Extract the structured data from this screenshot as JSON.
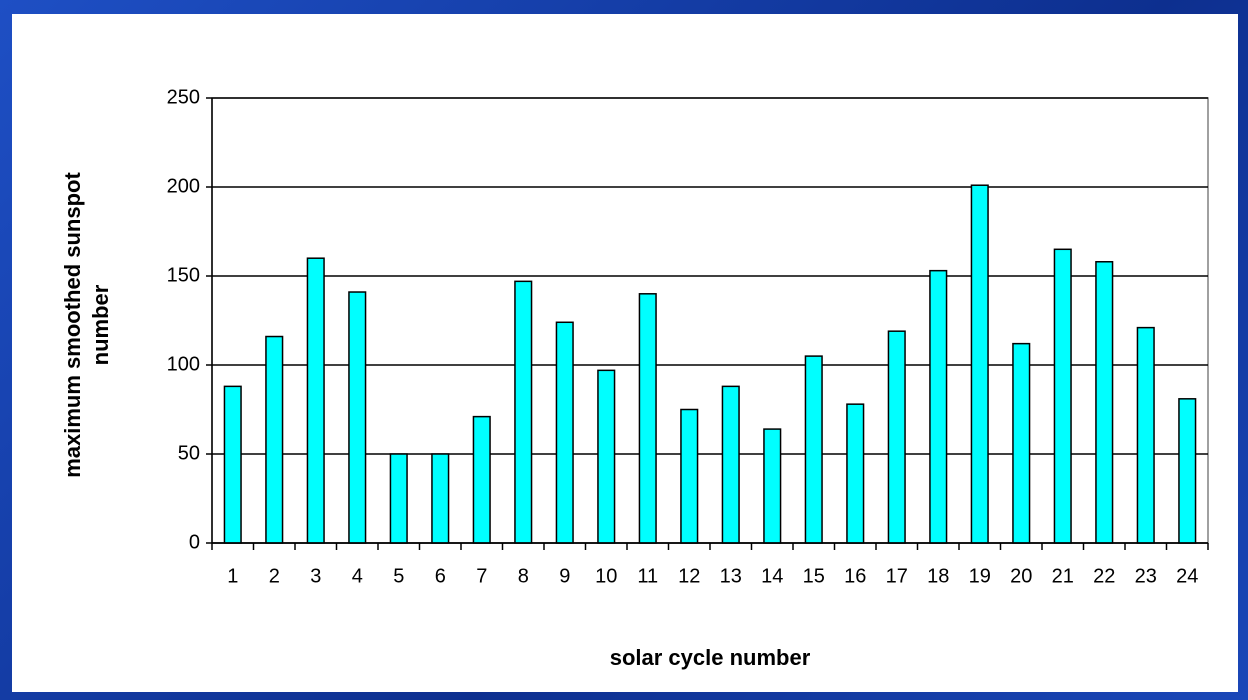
{
  "chart_data": {
    "type": "bar",
    "xlabel": "solar cycle number",
    "ylabel": "maximum smoothed sunspot number",
    "categories": [
      "1",
      "2",
      "3",
      "4",
      "5",
      "6",
      "7",
      "8",
      "9",
      "10",
      "11",
      "12",
      "13",
      "14",
      "15",
      "16",
      "17",
      "18",
      "19",
      "20",
      "21",
      "22",
      "23",
      "24"
    ],
    "values": [
      88,
      116,
      160,
      141,
      50,
      50,
      71,
      147,
      124,
      97,
      140,
      75,
      88,
      64,
      105,
      78,
      119,
      153,
      201,
      112,
      165,
      158,
      121,
      81
    ],
    "color": "#00ffff",
    "ylim": [
      0,
      250
    ],
    "yticks": [
      0,
      50,
      100,
      150,
      200,
      250
    ],
    "grid": true
  }
}
